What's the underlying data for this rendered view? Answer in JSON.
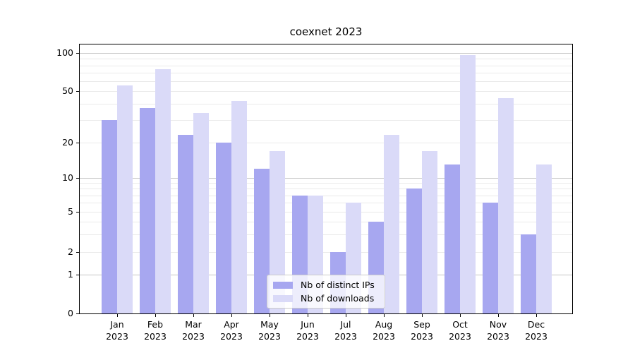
{
  "chart_data": {
    "type": "bar",
    "title": "coexnet 2023",
    "categories": [
      "Jan 2023",
      "Feb 2023",
      "Mar 2023",
      "Apr 2023",
      "May 2023",
      "Jun 2023",
      "Jul 2023",
      "Aug 2023",
      "Sep 2023",
      "Oct 2023",
      "Nov 2023",
      "Dec 2023"
    ],
    "series": [
      {
        "name": "Nb of distinct IPs",
        "color": "#a7a7f0",
        "values": [
          30,
          37,
          23,
          20,
          12,
          7,
          2,
          4,
          8,
          13,
          6,
          3
        ]
      },
      {
        "name": "Nb of downloads",
        "color": "#dadaf8",
        "values": [
          55,
          75,
          34,
          42,
          17,
          7,
          6,
          23,
          17,
          96,
          44,
          13
        ]
      }
    ],
    "yscale": "symlog",
    "ylim": [
      0,
      115
    ],
    "yticks": {
      "values": [
        100,
        50,
        20,
        10,
        5,
        2,
        1,
        0
      ],
      "labels": [
        "100",
        "50",
        "20",
        "10",
        "5",
        "2",
        "1",
        "0"
      ]
    },
    "grid": "horizontal major and log-minor gridlines",
    "legend_position": "lower center"
  },
  "colors": {
    "bar_distinct_ips": "#a7a7f0",
    "bar_downloads": "#dadaf8",
    "grid_major": "#c6c6c6",
    "grid_minor": "#eaeaea",
    "spine": "#000000",
    "text": "#000000",
    "legend_border": "#cbcbcb"
  }
}
